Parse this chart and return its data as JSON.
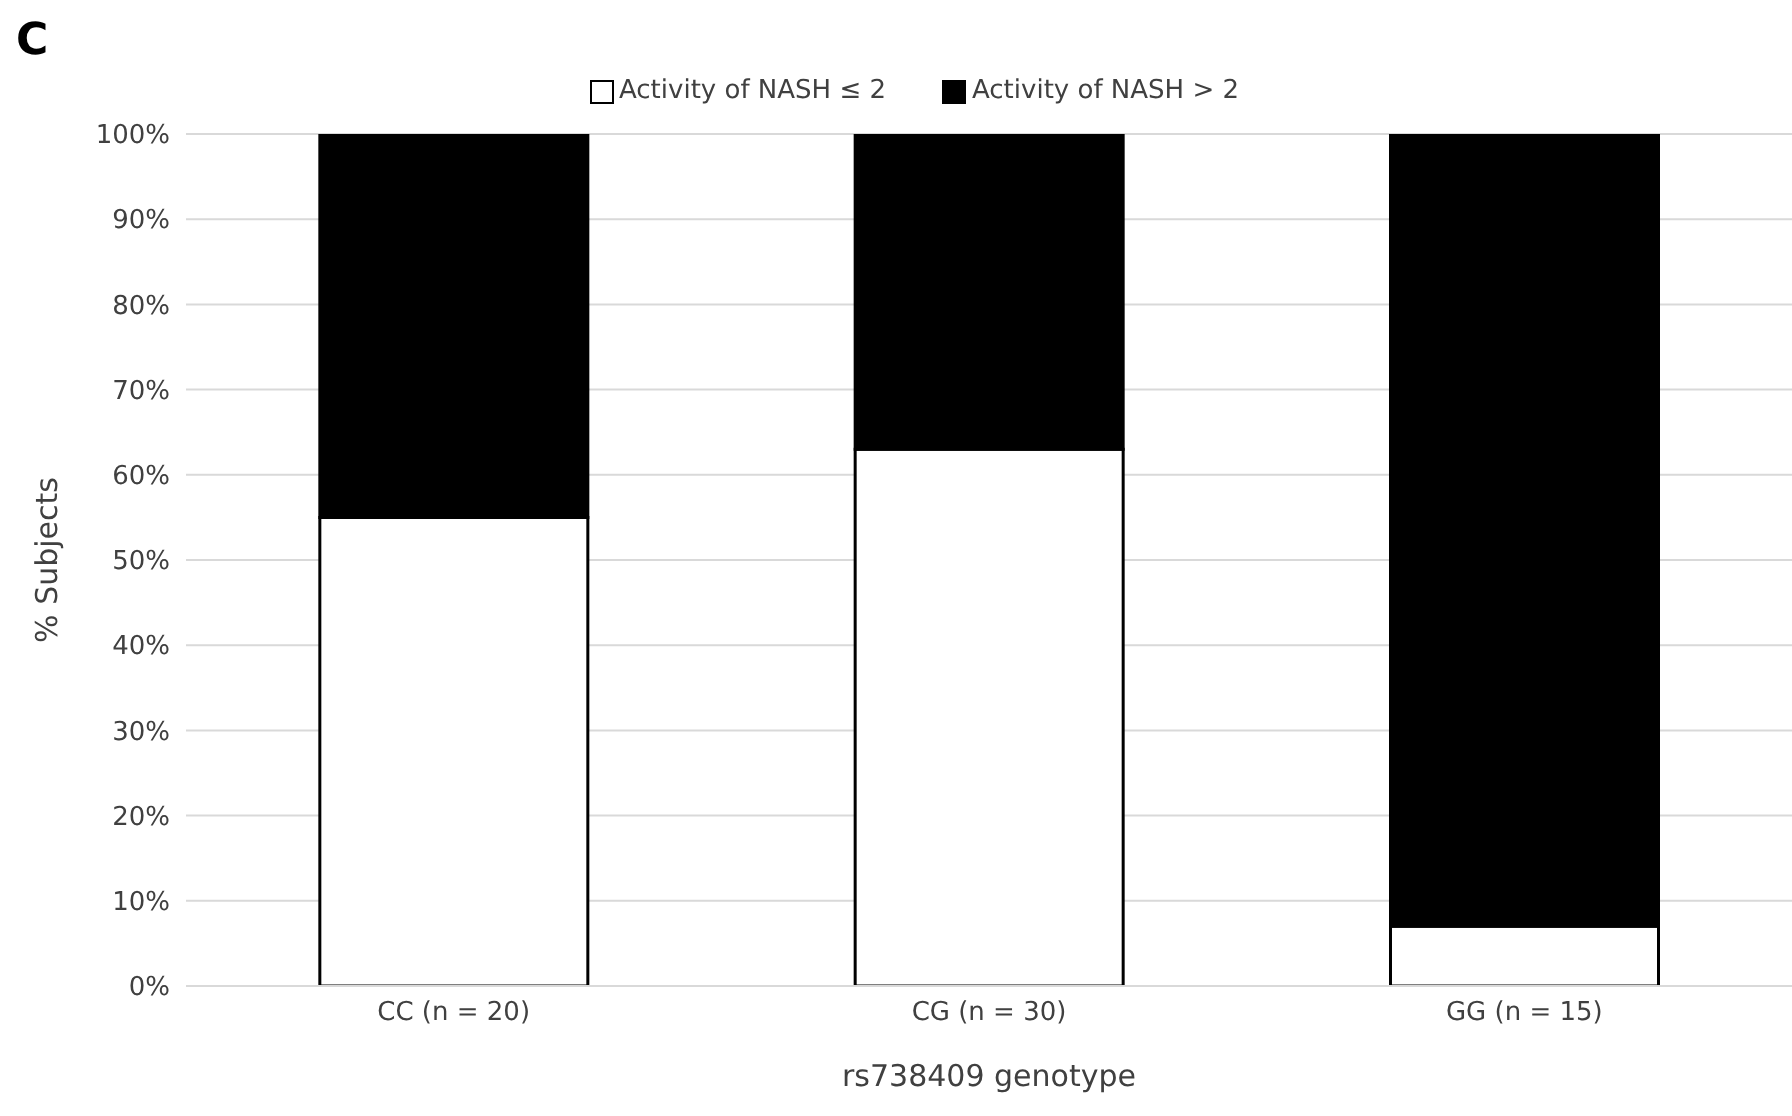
{
  "chart_data": {
    "type": "bar",
    "title": "C",
    "xlabel": "rs738409 genotype",
    "ylabel": "% Subjects",
    "categories": [
      "CC (n = 20)",
      "CG (n = 30)",
      "GG (n = 15)"
    ],
    "series": [
      {
        "name": "Activity of NASH ≤ 2",
        "color": "#ffffff",
        "values": [
          55,
          63,
          7
        ]
      },
      {
        "name": "Activity of NASH > 2",
        "color": "#000000",
        "values": [
          45,
          37,
          93
        ]
      }
    ],
    "stacked": true,
    "ylim": [
      0,
      100
    ],
    "yticks": [
      {
        "value": 0,
        "label": "0%"
      },
      {
        "value": 10,
        "label": "10%"
      },
      {
        "value": 20,
        "label": "20%"
      },
      {
        "value": 30,
        "label": "30%"
      },
      {
        "value": 40,
        "label": "40%"
      },
      {
        "value": 50,
        "label": "50%"
      },
      {
        "value": 60,
        "label": "60%"
      },
      {
        "value": 70,
        "label": "70%"
      },
      {
        "value": 80,
        "label": "80%"
      },
      {
        "value": 90,
        "label": "90%"
      },
      {
        "value": 100,
        "label": "100%"
      }
    ],
    "grid": "y",
    "legend": "top"
  }
}
